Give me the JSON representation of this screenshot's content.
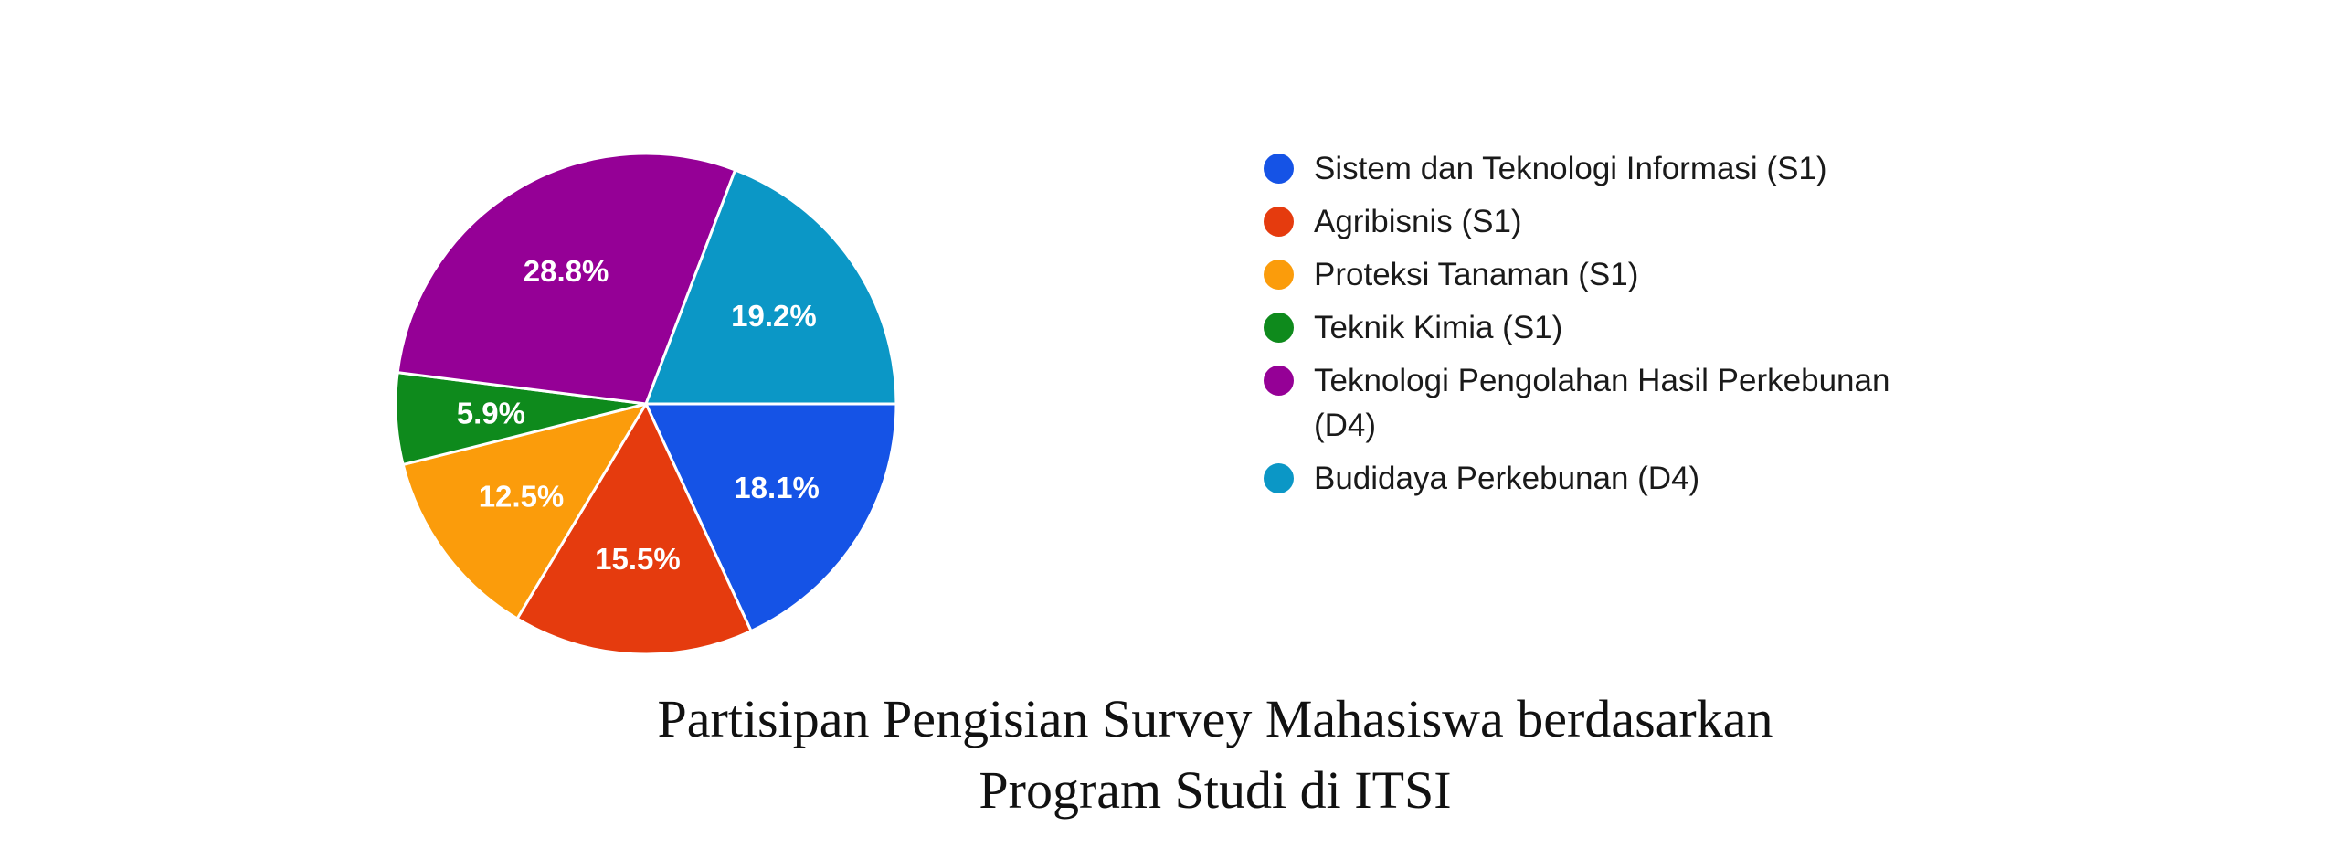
{
  "chart_data": {
    "type": "pie",
    "title": "Partisipan Pengisian Survey Mahasiswa berdasarkan Program Studi di ITSI",
    "title_lines": [
      "Partisipan Pengisian Survey Mahasiswa berdasarkan",
      "Program Studi di ITSI"
    ],
    "legend_position": "right",
    "slices": [
      {
        "label": "Sistem dan Teknologi Informasi (S1)",
        "value": 18.1,
        "display": "18.1%",
        "color": "#1553e6"
      },
      {
        "label": "Agribisnis (S1)",
        "value": 15.5,
        "display": "15.5%",
        "color": "#e53b0e"
      },
      {
        "label": "Proteksi Tanaman (S1)",
        "value": 12.5,
        "display": "12.5%",
        "color": "#fb9c0b"
      },
      {
        "label": "Teknik Kimia (S1)",
        "value": 5.9,
        "display": "5.9%",
        "color": "#0e8a1c"
      },
      {
        "label": "Teknologi Pengolahan Hasil Perkebunan (D4)",
        "value": 28.8,
        "display": "28.8%",
        "color": "#950096"
      },
      {
        "label": "Budidaya Perkebunan (D4)",
        "value": 19.2,
        "display": "19.2%",
        "color": "#0b97c6"
      }
    ]
  }
}
